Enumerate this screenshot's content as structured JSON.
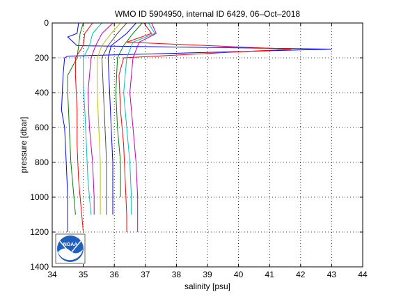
{
  "chart_data": {
    "type": "line",
    "title": "WMO ID 5904950, internal ID 6429, 06–Oct–2018",
    "xlabel": "salinity [psu]",
    "ylabel": "pressure [dbar]",
    "xlim": [
      34,
      44
    ],
    "ylim": [
      1400,
      0
    ],
    "y_reversed": true,
    "x_ticks": [
      "34",
      "35",
      "36",
      "37",
      "38",
      "39",
      "40",
      "41",
      "42",
      "43",
      "44"
    ],
    "y_ticks": [
      "0",
      "200",
      "400",
      "600",
      "800",
      "1000",
      "1200",
      "1400"
    ],
    "grid": true,
    "grid_style": "dotted",
    "legend": false,
    "series": [
      {
        "color": "#0000ff",
        "x": [
          34.85,
          34.8,
          34.5,
          34.8,
          43.0,
          34.5,
          34.4,
          34.35,
          34.3,
          34.4,
          34.45,
          34.5,
          34.5,
          34.5
        ],
        "y": [
          0,
          60,
          80,
          130,
          150,
          190,
          200,
          300,
          500,
          600,
          800,
          1000,
          1100,
          1200
        ]
      },
      {
        "color": "#008000",
        "x": [
          35.0,
          34.9,
          34.85,
          34.8,
          34.5,
          34.5,
          34.55,
          34.6,
          34.65,
          34.7,
          34.75
        ],
        "y": [
          0,
          60,
          130,
          200,
          300,
          400,
          600,
          800,
          900,
          1000,
          1100
        ]
      },
      {
        "color": "#ff0000",
        "x": [
          35.3,
          35.05,
          35.0,
          34.75,
          34.75,
          34.8,
          34.8,
          34.85,
          34.9,
          34.95,
          35.0
        ],
        "y": [
          0,
          60,
          130,
          200,
          300,
          500,
          700,
          900,
          1000,
          1100,
          1200
        ]
      },
      {
        "color": "#00bfbf",
        "x": [
          35.6,
          35.3,
          35.2,
          35.0,
          35.0,
          35.05,
          35.1,
          35.15,
          35.2,
          35.25
        ],
        "y": [
          0,
          60,
          130,
          200,
          350,
          500,
          700,
          900,
          1000,
          1100
        ]
      },
      {
        "color": "#bf00bf",
        "x": [
          35.95,
          35.6,
          35.4,
          35.25,
          35.15,
          35.2,
          35.3,
          35.35,
          35.35
        ],
        "y": [
          0,
          60,
          130,
          200,
          400,
          600,
          800,
          1000,
          1100
        ]
      },
      {
        "color": "#bfbf00",
        "x": [
          36.2,
          35.9,
          35.6,
          35.45,
          35.45,
          35.5,
          35.55,
          35.55,
          35.55
        ],
        "y": [
          0,
          60,
          130,
          200,
          400,
          600,
          800,
          1000,
          1100
        ]
      },
      {
        "color": "#4d4d4d",
        "x": [
          36.4,
          36.1,
          35.8,
          35.6,
          35.65,
          35.7,
          35.75,
          35.75
        ],
        "y": [
          0,
          60,
          130,
          200,
          400,
          600,
          800,
          1100
        ]
      },
      {
        "color": "#0000ff",
        "x": [
          36.7,
          36.4,
          35.9,
          35.8,
          35.85,
          35.9,
          35.95,
          35.95
        ],
        "y": [
          0,
          60,
          130,
          200,
          400,
          600,
          800,
          1100
        ]
      },
      {
        "color": "#008000",
        "x": [
          36.9,
          36.6,
          36.3,
          36.1,
          36.05,
          36.1,
          36.2,
          36.2
        ],
        "y": [
          0,
          60,
          130,
          200,
          400,
          600,
          800,
          1000
        ]
      },
      {
        "color": "#ff0000",
        "x": [
          36.95,
          37.2,
          36.4,
          41.7,
          36.3,
          36.15,
          36.2,
          36.3,
          36.35,
          36.4,
          36.4
        ],
        "y": [
          0,
          60,
          110,
          150,
          200,
          300,
          500,
          700,
          900,
          1100,
          1200
        ]
      },
      {
        "color": "#00bfbf",
        "x": [
          37.1,
          37.3,
          36.6,
          36.4,
          36.3,
          36.4,
          36.5,
          36.55,
          36.55
        ],
        "y": [
          0,
          60,
          110,
          200,
          400,
          600,
          800,
          1000,
          1100
        ]
      },
      {
        "color": "#bf00bf",
        "x": [
          37.2,
          37.35,
          36.8,
          36.6,
          36.5,
          36.6,
          36.7,
          36.75,
          36.75
        ],
        "y": [
          0,
          60,
          110,
          200,
          400,
          600,
          800,
          1000,
          1200
        ]
      }
    ]
  },
  "logo": {
    "text": "NOAA"
  }
}
